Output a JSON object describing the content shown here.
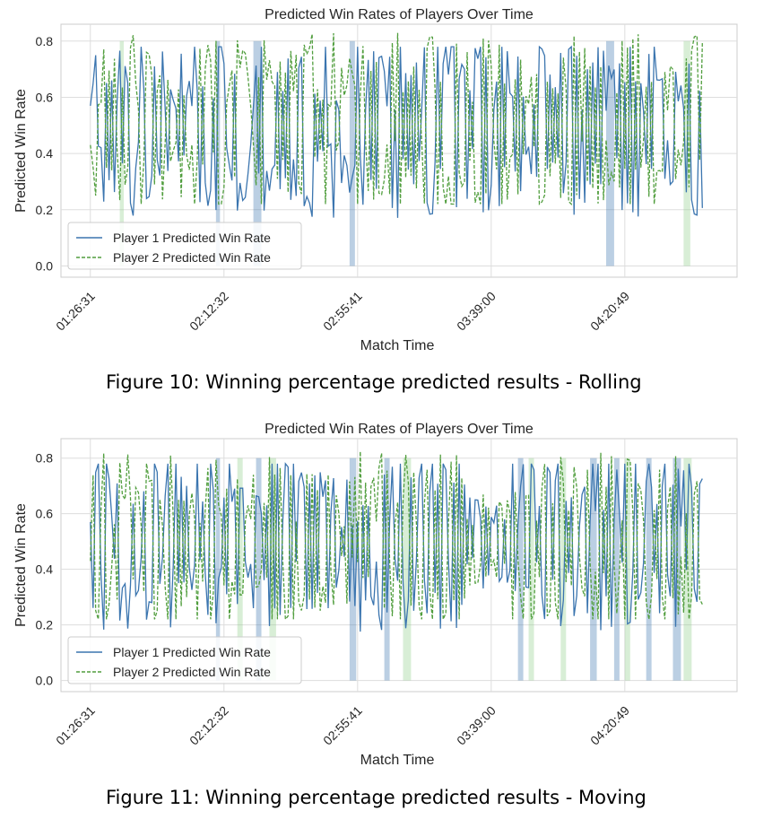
{
  "chart_data": [
    {
      "type": "line",
      "title": "Predicted Win Rates of Players Over Time",
      "xlabel": "Match Time",
      "ylabel": "Predicted Win Rate",
      "ylim": [
        -0.04,
        0.86
      ],
      "yticks": [
        0.0,
        0.2,
        0.4,
        0.6,
        0.8
      ],
      "ytick_labels": [
        "0.0",
        "0.2",
        "0.4",
        "0.6",
        "0.8"
      ],
      "xticks": [
        "01:26:31",
        "02:12:32",
        "02:55:41",
        "03:39:00",
        "04:20:49"
      ],
      "xtick_index": [
        0,
        50,
        100,
        150,
        200
      ],
      "xlim": [
        -11,
        242
      ],
      "grid": true,
      "legend_position": "lower-left",
      "caption": "Figure 10:  Winning percentage predicted results - Rolling",
      "series": [
        {
          "name": "Player 1 Predicted Win Rate",
          "color": "#3b75af",
          "style": "solid",
          "seed": 11
        },
        {
          "name": "Player 2 Predicted Win Rate",
          "color": "#519e3e",
          "style": "dashed",
          "seed": 11
        }
      ],
      "highlights": [
        {
          "color": "#3b75af",
          "intervals": [
            [
              47,
              48.5
            ],
            [
              61,
              64
            ],
            [
              97,
              99
            ],
            [
              193,
              196
            ]
          ]
        },
        {
          "color": "#8fcf8a",
          "intervals": [
            [
              11,
              12.5
            ],
            [
              222,
              224.5
            ]
          ]
        }
      ]
    },
    {
      "type": "line",
      "title": "Predicted Win Rates of Players Over Time",
      "xlabel": "Match Time",
      "ylabel": "Predicted Win Rate",
      "ylim": [
        -0.04,
        0.87
      ],
      "yticks": [
        0.0,
        0.2,
        0.4,
        0.6,
        0.8
      ],
      "ytick_labels": [
        "0.0",
        "0.2",
        "0.4",
        "0.6",
        "0.8"
      ],
      "xticks": [
        "01:26:31",
        "02:12:32",
        "02:55:41",
        "03:39:00",
        "04:20:49"
      ],
      "xtick_index": [
        0,
        50,
        100,
        150,
        200
      ],
      "xlim": [
        -11,
        242
      ],
      "grid": true,
      "legend_position": "lower-left",
      "caption": "Figure 11:   Winning percentage predicted results - Moving",
      "series": [
        {
          "name": "Player 1 Predicted Win Rate",
          "color": "#3b75af",
          "style": "solid",
          "seed": 29
        },
        {
          "name": "Player 2 Predicted Win Rate",
          "color": "#519e3e",
          "style": "dashed",
          "seed": 29
        }
      ],
      "highlights": [
        {
          "color": "#3b75af",
          "intervals": [
            [
              47,
              48.5
            ],
            [
              62,
              64
            ],
            [
              97,
              99.5
            ],
            [
              110,
              112
            ],
            [
              160,
              162
            ],
            [
              187,
              189.5
            ],
            [
              196,
              198
            ],
            [
              208,
              210
            ],
            [
              218,
              221
            ]
          ]
        },
        {
          "color": "#8fcf8a",
          "intervals": [
            [
              55,
              57
            ],
            [
              67,
              69.5
            ],
            [
              117,
              120
            ],
            [
              164,
              166
            ],
            [
              176,
              178
            ],
            [
              200,
              202
            ],
            [
              222,
              225
            ]
          ]
        }
      ]
    }
  ]
}
